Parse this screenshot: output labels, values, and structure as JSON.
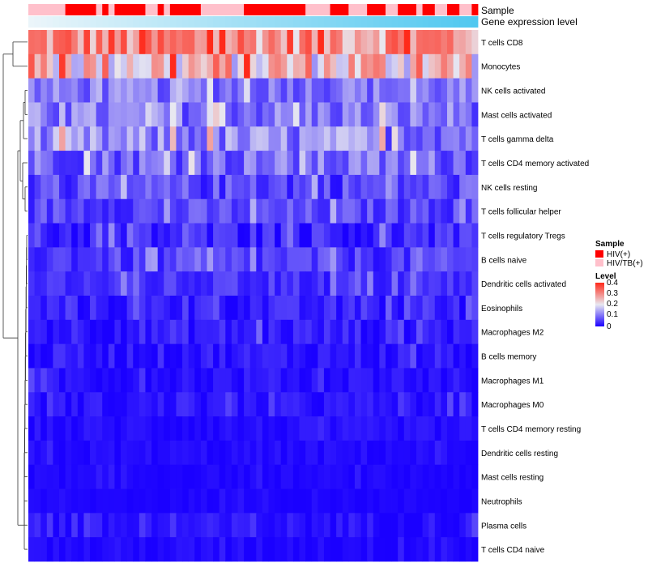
{
  "chart_data": {
    "type": "heatmap",
    "annotations": {
      "sample_label": "Sample",
      "expression_label": "Gene expression level",
      "sample_groups": [
        "HIV/TB(+)",
        "HIV/TB(+)",
        "HIV/TB(+)",
        "HIV/TB(+)",
        "HIV/TB(+)",
        "HIV/TB(+)",
        "HIV(+)",
        "HIV(+)",
        "HIV(+)",
        "HIV(+)",
        "HIV(+)",
        "HIV/TB(+)",
        "HIV(+)",
        "HIV/TB(+)",
        "HIV(+)",
        "HIV(+)",
        "HIV(+)",
        "HIV(+)",
        "HIV(+)",
        "HIV/TB(+)",
        "HIV/TB(+)",
        "HIV(+)",
        "HIV/TB(+)",
        "HIV(+)",
        "HIV(+)",
        "HIV(+)",
        "HIV(+)",
        "HIV(+)",
        "HIV/TB(+)",
        "HIV/TB(+)",
        "HIV/TB(+)",
        "HIV/TB(+)",
        "HIV/TB(+)",
        "HIV/TB(+)",
        "HIV/TB(+)",
        "HIV(+)",
        "HIV(+)",
        "HIV(+)",
        "HIV(+)",
        "HIV(+)",
        "HIV(+)",
        "HIV(+)",
        "HIV(+)",
        "HIV(+)",
        "HIV(+)",
        "HIV/TB(+)",
        "HIV/TB(+)",
        "HIV/TB(+)",
        "HIV/TB(+)",
        "HIV(+)",
        "HIV(+)",
        "HIV(+)",
        "HIV/TB(+)",
        "HIV/TB(+)",
        "HIV/TB(+)",
        "HIV(+)",
        "HIV(+)",
        "HIV(+)",
        "HIV/TB(+)",
        "HIV/TB(+)",
        "HIV(+)",
        "HIV(+)",
        "HIV(+)",
        "HIV/TB(+)",
        "HIV(+)",
        "HIV(+)",
        "HIV/TB(+)",
        "HIV/TB(+)",
        "HIV(+)",
        "HIV(+)",
        "HIV/TB(+)",
        "HIV/TB(+)",
        "HIV(+)"
      ]
    },
    "rows": [
      {
        "name": "T cells CD8",
        "base": 0.3,
        "spread": 0.1
      },
      {
        "name": "Monocytes",
        "base": 0.24,
        "spread": 0.12
      },
      {
        "name": "NK cells activated",
        "base": 0.1,
        "spread": 0.05
      },
      {
        "name": "Mast cells activated",
        "base": 0.1,
        "spread": 0.06
      },
      {
        "name": "T cells gamma delta",
        "base": 0.11,
        "spread": 0.07
      },
      {
        "name": "T cells CD4 memory activated",
        "base": 0.09,
        "spread": 0.06
      },
      {
        "name": "NK cells resting",
        "base": 0.06,
        "spread": 0.05
      },
      {
        "name": "T cells follicular helper",
        "base": 0.06,
        "spread": 0.04
      },
      {
        "name": "T cells regulatory  Tregs",
        "base": 0.03,
        "spread": 0.04
      },
      {
        "name": "B cells naive",
        "base": 0.05,
        "spread": 0.04
      },
      {
        "name": "Dendritic cells activated",
        "base": 0.04,
        "spread": 0.03
      },
      {
        "name": "Eosinophils",
        "base": 0.025,
        "spread": 0.03
      },
      {
        "name": "Macrophages M2",
        "base": 0.025,
        "spread": 0.03
      },
      {
        "name": "B cells memory",
        "base": 0.02,
        "spread": 0.025
      },
      {
        "name": "Macrophages M1",
        "base": 0.015,
        "spread": 0.02
      },
      {
        "name": "Macrophages M0",
        "base": 0.015,
        "spread": 0.02
      },
      {
        "name": "T cells CD4 memory resting",
        "base": 0.01,
        "spread": 0.015
      },
      {
        "name": "Dendritic cells resting",
        "base": 0.008,
        "spread": 0.012
      },
      {
        "name": "Mast cells resting",
        "base": 0.005,
        "spread": 0.008
      },
      {
        "name": "Neutrophils",
        "base": 0.004,
        "spread": 0.006
      },
      {
        "name": "Plasma cells",
        "base": 0.015,
        "spread": 0.02
      },
      {
        "name": "T cells CD4 naive",
        "base": 0.008,
        "spread": 0.012
      }
    ],
    "color_scale": {
      "min": 0,
      "max": 0.4,
      "low": "#1a00ff",
      "mid": "#e8e8f0",
      "high": "#ff2a1a"
    },
    "legend": {
      "sample_title": "Sample",
      "sample_items": [
        {
          "label": "HIV(+)",
          "color": "#ff0000"
        },
        {
          "label": "HIV/TB(+)",
          "color": "#ffc0cb"
        }
      ],
      "level_title": "Level",
      "level_ticks": [
        "0.4",
        "0.3",
        "0.2",
        "0.1",
        "0"
      ],
      "position": "right"
    }
  }
}
